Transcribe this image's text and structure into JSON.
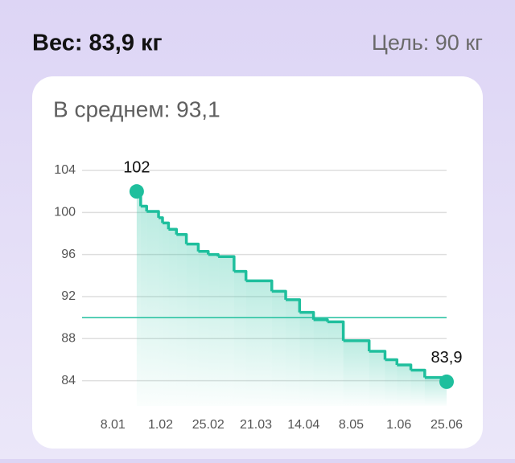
{
  "header": {
    "weight": "Вес: 83,9 кг",
    "goal": "Цель: 90 кг"
  },
  "chart_data": {
    "type": "step-area",
    "subtitle": "В среднем: 93,1",
    "x": [
      20,
      22,
      25,
      31,
      33,
      36,
      40,
      45,
      51,
      56,
      61,
      69,
      75,
      88,
      95,
      102,
      109,
      116,
      124,
      137,
      145,
      151,
      158,
      165,
      176
    ],
    "values": [
      102,
      100.6,
      100.1,
      99.5,
      99,
      98.4,
      97.9,
      97,
      96.3,
      96,
      95.8,
      94.4,
      93.5,
      92.5,
      91.7,
      90.5,
      89.8,
      89.6,
      87.8,
      86.8,
      86,
      85.5,
      85,
      84.3,
      83.9
    ],
    "value_labels": [
      "102",
      null,
      null,
      null,
      null,
      null,
      null,
      null,
      null,
      null,
      null,
      null,
      null,
      null,
      null,
      null,
      null,
      null,
      null,
      null,
      null,
      null,
      null,
      null,
      "83,9"
    ],
    "color": "#1fbf9d",
    "xlim": [
      -7.5,
      176
    ],
    "xticks": [
      {
        "value": 8,
        "label": "8.01"
      },
      {
        "value": 32,
        "label": "1.02"
      },
      {
        "value": 56,
        "label": "25.02"
      },
      {
        "value": 80,
        "label": "21.03"
      },
      {
        "value": 104,
        "label": "14.04"
      },
      {
        "value": 128,
        "label": "8.05"
      },
      {
        "value": 152,
        "label": "1.06"
      },
      {
        "value": 176,
        "label": "25.06"
      }
    ],
    "ylim": [
      81.6,
      104
    ],
    "yticks": [
      84,
      88,
      92,
      96,
      100,
      104
    ],
    "grid": true,
    "goal_line": 90
  }
}
